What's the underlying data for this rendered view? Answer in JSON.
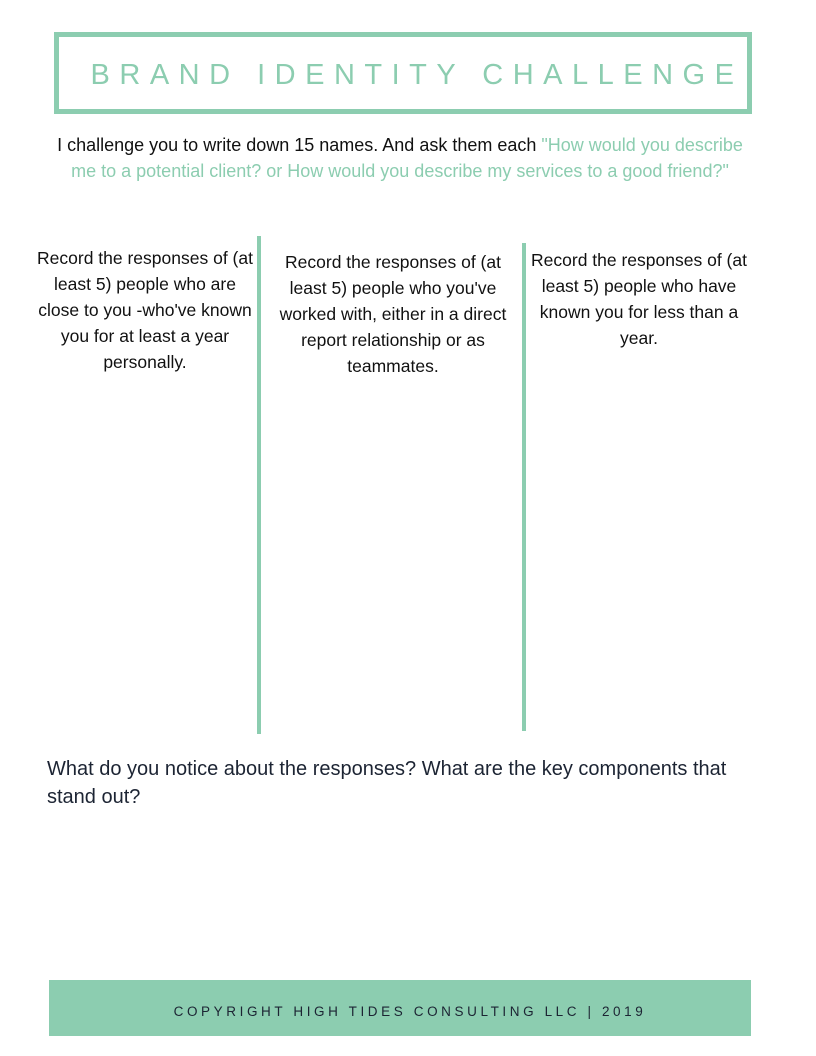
{
  "title": "BRAND IDENTITY CHALLENGE",
  "intro": {
    "text": "I challenge you to write down 15 names. And ask them each ",
    "quote": "\"How would you describe me to a potential client? or How would you describe my services to a good friend?\""
  },
  "columns": [
    "Record the responses of (at least 5) people who are close to you -who've known you for at least a year personally.",
    "Record the responses of (at least 5) people who you've worked with, either in a direct report relationship or as teammates.",
    "Record the responses of (at least 5) people who have known you for less than a year."
  ],
  "question": "What do you notice about the responses? What are the key components that stand out?",
  "footer": "COPYRIGHT HIGH TIDES CONSULTING LLC | 2019",
  "colors": {
    "accent": "#8ccdb0",
    "text": "#1c2433"
  }
}
